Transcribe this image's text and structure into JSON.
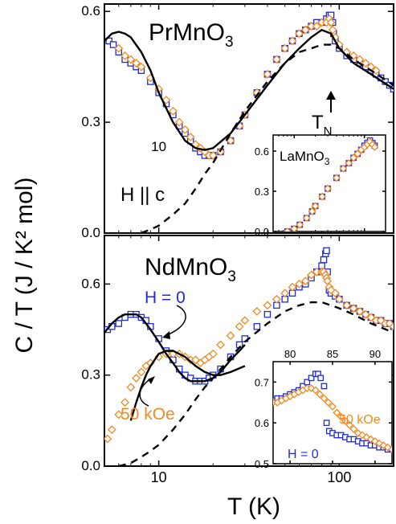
{
  "colors": {
    "blue": "#1f2bd6",
    "orange": "#f08a24",
    "fit": "#000000"
  },
  "labels": {
    "ylabel": "C / T (J / K² mol)",
    "xlabel": "T (K)",
    "top_title_main": "PrMnO",
    "top_title_sub": "3",
    "bottom_title_main": "NdMnO",
    "bottom_title_sub": "3",
    "field_dir": "H || c",
    "tn_main": "T",
    "tn_sub": "N",
    "inset_top_title_main": "LaMnO",
    "inset_top_title_sub": "3",
    "h0": "H = 0",
    "h50": "50 kOe",
    "inset_h0": "H = 0",
    "inset_h50": "50 kOe"
  },
  "chart_data": [
    {
      "type": "scatter",
      "panel": "top",
      "xscale": "log",
      "xlim": [
        5,
        200
      ],
      "ylim": [
        0,
        0.62
      ],
      "xticks": [
        10,
        100
      ],
      "yticks": [
        0.0,
        0.3,
        0.6
      ],
      "ytick_labels": [
        "0.0",
        "0.3",
        "0.6"
      ],
      "title": "PrMnO3",
      "annotations": [
        "H || c",
        "TN"
      ],
      "series": [
        {
          "color": "blue",
          "marker": "open-square",
          "x": [
            5.3,
            5.6,
            6,
            6.5,
            7,
            7.5,
            8,
            9,
            10,
            11,
            12,
            13,
            14,
            15,
            16,
            17,
            18,
            19,
            20,
            22,
            25,
            28,
            30,
            35,
            40,
            45,
            50,
            55,
            60,
            65,
            70,
            75,
            80,
            85,
            88,
            90,
            92,
            93,
            95,
            100,
            110,
            120,
            130,
            140,
            150,
            160,
            170,
            180,
            190,
            200
          ],
          "y": [
            0.52,
            0.51,
            0.49,
            0.47,
            0.46,
            0.45,
            0.44,
            0.41,
            0.38,
            0.35,
            0.32,
            0.29,
            0.27,
            0.25,
            0.23,
            0.22,
            0.21,
            0.21,
            0.21,
            0.22,
            0.25,
            0.29,
            0.32,
            0.38,
            0.43,
            0.47,
            0.5,
            0.52,
            0.54,
            0.55,
            0.56,
            0.57,
            0.57,
            0.58,
            0.59,
            0.59,
            0.57,
            0.54,
            0.52,
            0.5,
            0.48,
            0.47,
            0.46,
            0.45,
            0.44,
            0.43,
            0.42,
            0.41,
            0.4,
            0.39
          ]
        },
        {
          "color": "orange",
          "marker": "open-diamond",
          "x": [
            6,
            6.5,
            7,
            7.5,
            8,
            9,
            10,
            11,
            12,
            13,
            14,
            15,
            16,
            17,
            18,
            19,
            20,
            22,
            25,
            28,
            30,
            35,
            40,
            45,
            50,
            55,
            60,
            65,
            70,
            75,
            80,
            85,
            88,
            90,
            92,
            95,
            100,
            110,
            120,
            130,
            140,
            150,
            160
          ],
          "y": [
            0.5,
            0.48,
            0.47,
            0.46,
            0.45,
            0.42,
            0.39,
            0.36,
            0.33,
            0.3,
            0.28,
            0.26,
            0.24,
            0.23,
            0.22,
            0.21,
            0.21,
            0.22,
            0.25,
            0.29,
            0.32,
            0.38,
            0.43,
            0.47,
            0.5,
            0.52,
            0.54,
            0.55,
            0.56,
            0.56,
            0.57,
            0.57,
            0.58,
            0.57,
            0.55,
            0.53,
            0.51,
            0.49,
            0.48,
            0.47,
            0.46,
            0.45,
            0.44
          ]
        },
        {
          "color": "fit",
          "style": "solid",
          "x": [
            5,
            5.5,
            6,
            6.5,
            7,
            8,
            9,
            10,
            12,
            14,
            16,
            18,
            20,
            25,
            30,
            40,
            50,
            60,
            70,
            80,
            90,
            100,
            120,
            150,
            200
          ],
          "y": [
            0.52,
            0.54,
            0.545,
            0.54,
            0.53,
            0.49,
            0.44,
            0.38,
            0.3,
            0.25,
            0.23,
            0.225,
            0.23,
            0.27,
            0.32,
            0.4,
            0.46,
            0.5,
            0.53,
            0.55,
            0.54,
            0.5,
            0.46,
            0.43,
            0.39
          ]
        },
        {
          "color": "fit",
          "style": "dashed",
          "x": [
            8,
            9,
            10,
            12,
            14,
            16,
            18,
            20,
            25,
            30,
            40,
            50,
            60,
            70,
            80,
            90,
            100,
            120,
            150,
            200
          ],
          "y": [
            0.0,
            0.01,
            0.02,
            0.05,
            0.08,
            0.12,
            0.16,
            0.19,
            0.27,
            0.33,
            0.41,
            0.46,
            0.49,
            0.5,
            0.51,
            0.51,
            0.5,
            0.47,
            0.44,
            0.4
          ]
        }
      ]
    },
    {
      "type": "scatter",
      "panel": "inset-top",
      "xscale": "log",
      "xlim": [
        5,
        200
      ],
      "ylim": [
        0,
        0.72
      ],
      "xticks": [
        10,
        100
      ],
      "yticks": [
        0.0,
        0.3,
        0.6
      ],
      "ytick_labels": [
        "0.0",
        "0.3",
        "0.6"
      ],
      "title": "LaMnO3",
      "series": [
        {
          "color": "blue",
          "marker": "open-square",
          "x": [
            8,
            10,
            12,
            15,
            18,
            20,
            25,
            30,
            40,
            50,
            60,
            70,
            80,
            90,
            100,
            110,
            120,
            130,
            140
          ],
          "y": [
            0.0,
            0.02,
            0.05,
            0.1,
            0.15,
            0.19,
            0.26,
            0.32,
            0.4,
            0.47,
            0.51,
            0.55,
            0.58,
            0.61,
            0.64,
            0.66,
            0.68,
            0.66,
            0.64
          ]
        },
        {
          "color": "orange",
          "marker": "open-diamond",
          "x": [
            8,
            10,
            12,
            15,
            18,
            20,
            25,
            30,
            40,
            50,
            60,
            70,
            80,
            90,
            100,
            110,
            120,
            130,
            140
          ],
          "y": [
            0.0,
            0.02,
            0.05,
            0.1,
            0.15,
            0.19,
            0.26,
            0.32,
            0.4,
            0.47,
            0.51,
            0.55,
            0.58,
            0.61,
            0.63,
            0.65,
            0.67,
            0.65,
            0.63
          ]
        }
      ]
    },
    {
      "type": "scatter",
      "panel": "bottom",
      "xscale": "log",
      "xlim": [
        5,
        200
      ],
      "ylim": [
        0,
        0.76
      ],
      "xticks": [
        10,
        100
      ],
      "yticks": [
        0.0,
        0.3,
        0.6
      ],
      "ytick_labels": [
        "0.0",
        "0.3",
        "0.6"
      ],
      "title": "NdMnO3",
      "annotations": [
        "H = 0",
        "50 kOe"
      ],
      "series": [
        {
          "name": "H = 0",
          "color": "blue",
          "marker": "open-square",
          "x": [
            5.2,
            5.5,
            6,
            6.5,
            7,
            7.5,
            8,
            8.5,
            9,
            10,
            11,
            12,
            13,
            14,
            15,
            16,
            17,
            18,
            19,
            20,
            22,
            25,
            28,
            30,
            35,
            40,
            45,
            50,
            55,
            60,
            65,
            70,
            75,
            80,
            82,
            84,
            85,
            86,
            88,
            90,
            95,
            100,
            110,
            120,
            130,
            140,
            150,
            160,
            170,
            180,
            190,
            200
          ],
          "y": [
            0.45,
            0.46,
            0.47,
            0.49,
            0.5,
            0.5,
            0.49,
            0.48,
            0.46,
            0.42,
            0.38,
            0.35,
            0.32,
            0.3,
            0.29,
            0.28,
            0.28,
            0.28,
            0.29,
            0.3,
            0.32,
            0.36,
            0.4,
            0.42,
            0.46,
            0.5,
            0.53,
            0.55,
            0.57,
            0.59,
            0.6,
            0.62,
            0.64,
            0.66,
            0.68,
            0.7,
            0.71,
            0.64,
            0.58,
            0.57,
            0.56,
            0.55,
            0.53,
            0.52,
            0.51,
            0.5,
            0.49,
            0.48,
            0.48,
            0.47,
            0.47,
            0.46
          ]
        },
        {
          "name": "50 kOe",
          "color": "orange",
          "marker": "open-diamond",
          "x": [
            5.2,
            5.5,
            6,
            6.5,
            7,
            7.5,
            8,
            8.5,
            9,
            10,
            11,
            12,
            13,
            14,
            15,
            16,
            17,
            18,
            19,
            20,
            22,
            25,
            28,
            30,
            35,
            40,
            45,
            50,
            55,
            60,
            65,
            70,
            75,
            80,
            82,
            84,
            85,
            86,
            88,
            90,
            95,
            100,
            110,
            120,
            130,
            140,
            150,
            160,
            170,
            180,
            190,
            200
          ],
          "y": [
            0.09,
            0.12,
            0.17,
            0.21,
            0.26,
            0.29,
            0.31,
            0.33,
            0.34,
            0.36,
            0.37,
            0.37,
            0.37,
            0.36,
            0.35,
            0.35,
            0.34,
            0.35,
            0.36,
            0.37,
            0.4,
            0.43,
            0.46,
            0.48,
            0.51,
            0.53,
            0.55,
            0.57,
            0.59,
            0.6,
            0.61,
            0.63,
            0.64,
            0.64,
            0.64,
            0.63,
            0.62,
            0.61,
            0.59,
            0.58,
            0.57,
            0.55,
            0.53,
            0.52,
            0.51,
            0.5,
            0.49,
            0.48,
            0.48,
            0.47,
            0.47,
            0.46
          ]
        },
        {
          "color": "fit",
          "style": "solid",
          "x": [
            7.0,
            7.5,
            8,
            8.5,
            9,
            10,
            11,
            12,
            14,
            16,
            18,
            20,
            22,
            25,
            30
          ],
          "y": [
            0.15,
            0.21,
            0.26,
            0.3,
            0.33,
            0.37,
            0.38,
            0.38,
            0.36,
            0.33,
            0.31,
            0.3,
            0.3,
            0.31,
            0.33
          ]
        },
        {
          "color": "fit",
          "style": "solid",
          "x": [
            5,
            5.5,
            6,
            6.5,
            7,
            7.5,
            8,
            8.5,
            9,
            10,
            11,
            12,
            13,
            14,
            15,
            16,
            18,
            20,
            22,
            25,
            28,
            30
          ],
          "y": [
            0.44,
            0.47,
            0.49,
            0.5,
            0.5,
            0.5,
            0.49,
            0.47,
            0.45,
            0.41,
            0.37,
            0.34,
            0.31,
            0.29,
            0.28,
            0.28,
            0.28,
            0.29,
            0.31,
            0.35,
            0.38,
            0.4
          ]
        },
        {
          "color": "fit",
          "style": "dashed",
          "x": [
            6,
            7,
            8,
            9,
            10,
            12,
            14,
            16,
            18,
            20,
            25,
            30,
            40,
            50,
            60,
            70,
            80,
            90,
            100,
            120,
            150,
            200
          ],
          "y": [
            0.0,
            0.01,
            0.03,
            0.05,
            0.07,
            0.12,
            0.17,
            0.22,
            0.26,
            0.29,
            0.36,
            0.41,
            0.47,
            0.51,
            0.53,
            0.54,
            0.54,
            0.53,
            0.52,
            0.5,
            0.47,
            0.44
          ]
        }
      ]
    },
    {
      "type": "scatter",
      "panel": "inset-bottom",
      "xscale": "linear",
      "xlim": [
        78,
        92
      ],
      "ylim": [
        0.5,
        0.75
      ],
      "xticks": [
        80,
        85,
        90
      ],
      "yticks": [
        0.5,
        0.6,
        0.7
      ],
      "ytick_labels": [
        "0.5",
        "0.6",
        "0.7"
      ],
      "annotations": [
        "50 kOe",
        "H = 0"
      ],
      "series": [
        {
          "name": "H = 0",
          "color": "blue",
          "marker": "open-square",
          "x": [
            78,
            78.5,
            79,
            79.5,
            80,
            80.5,
            81,
            81.5,
            82,
            82.5,
            83,
            83.3,
            83.6,
            84,
            84.3,
            84.6,
            85,
            85.5,
            86,
            86.5,
            87,
            87.5,
            88,
            88.5,
            89,
            89.5,
            90,
            90.5,
            91,
            91.5,
            92
          ],
          "y": [
            0.655,
            0.66,
            0.66,
            0.665,
            0.67,
            0.675,
            0.68,
            0.69,
            0.7,
            0.71,
            0.72,
            0.72,
            0.71,
            0.69,
            0.6,
            0.58,
            0.575,
            0.57,
            0.57,
            0.565,
            0.56,
            0.56,
            0.555,
            0.55,
            0.55,
            0.545,
            0.545,
            0.54,
            0.54,
            0.535,
            0.535
          ]
        },
        {
          "name": "50 kOe",
          "color": "orange",
          "marker": "open-diamond",
          "x": [
            78,
            78.5,
            79,
            79.5,
            80,
            80.5,
            81,
            81.5,
            82,
            82.5,
            83,
            83.5,
            84,
            84.5,
            85,
            85.5,
            86,
            86.5,
            87,
            87.5,
            88,
            88.5,
            89,
            89.5,
            90,
            90.5,
            91,
            91.5,
            92
          ],
          "y": [
            0.65,
            0.65,
            0.655,
            0.66,
            0.665,
            0.67,
            0.675,
            0.68,
            0.685,
            0.685,
            0.68,
            0.67,
            0.66,
            0.65,
            0.64,
            0.625,
            0.615,
            0.605,
            0.595,
            0.585,
            0.575,
            0.57,
            0.565,
            0.56,
            0.555,
            0.55,
            0.545,
            0.54,
            0.535
          ]
        }
      ]
    }
  ]
}
